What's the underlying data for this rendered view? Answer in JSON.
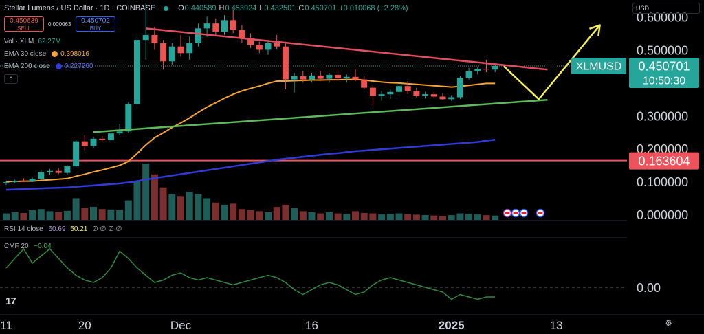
{
  "header": {
    "title": "Stellar Lumens / US Dollar · 1D · COINBASE",
    "open_label": "O",
    "open": "0.440589",
    "high_label": "H",
    "high": "0.453924",
    "low_label": "L",
    "low": "0.432501",
    "close_label": "C",
    "close": "0.450701",
    "change": "+0.010068 (+2.28%)"
  },
  "trade": {
    "sell_price": "0.450639",
    "sell_label": "SELL",
    "spread": "0.000063",
    "buy_price": "0.450702",
    "buy_label": "BUY"
  },
  "indicators": {
    "vol_name": "Vol · XLM",
    "vol_value": "62.27M",
    "ema30_name": "EMA 30 close",
    "ema30_value": "0.398016",
    "ema200_name": "EMA 200 close",
    "ema200_value": "0.227260",
    "rsi_name": "RSI 14 close",
    "rsi_value1": "60.69",
    "rsi_value2": "50.21",
    "rsi_extra": "∅ ∅ ∅ ∅",
    "cmf_name": "CMF 20",
    "cmf_value": "−0.04",
    "collapse_glyph": "⌃"
  },
  "currency_select": "USD",
  "symbol_badge": "XLMUSD",
  "last_price_label": "0.450701",
  "countdown": "10:50:30",
  "level_label": "0.163604",
  "logo_text": "17",
  "colors": {
    "up": "#26a69a",
    "down": "#ef5350",
    "ema30": "#f7a434",
    "ema200": "#2f3bd6",
    "resistance": "#e04f5f",
    "support": "#5db95b",
    "level": "#f0525c",
    "projection": "#f2ee5c",
    "cmf": "#2e8b3e"
  },
  "chart_data": {
    "type": "candlestick",
    "yaxis_ticks": [
      "0.000000",
      "0.100000",
      "0.200000",
      "0.300000",
      "0.400000",
      "0.500000",
      "0.600000"
    ],
    "ylim": [
      0,
      0.62
    ],
    "xaxis_ticks": [
      {
        "label": "11",
        "i": 0
      },
      {
        "label": "20",
        "i": 9
      },
      {
        "label": "Dec",
        "i": 20
      },
      {
        "label": "16",
        "i": 35
      },
      {
        "label": "2025",
        "i": 51
      },
      {
        "label": "13",
        "i": 63
      }
    ],
    "candles": [
      {
        "o": 0.095,
        "h": 0.1,
        "l": 0.09,
        "c": 0.098
      },
      {
        "o": 0.098,
        "h": 0.105,
        "l": 0.095,
        "c": 0.102
      },
      {
        "o": 0.102,
        "h": 0.11,
        "l": 0.098,
        "c": 0.1
      },
      {
        "o": 0.1,
        "h": 0.112,
        "l": 0.098,
        "c": 0.108
      },
      {
        "o": 0.108,
        "h": 0.135,
        "l": 0.105,
        "c": 0.128
      },
      {
        "o": 0.128,
        "h": 0.138,
        "l": 0.12,
        "c": 0.132
      },
      {
        "o": 0.132,
        "h": 0.14,
        "l": 0.122,
        "c": 0.126
      },
      {
        "o": 0.126,
        "h": 0.15,
        "l": 0.12,
        "c": 0.146
      },
      {
        "o": 0.146,
        "h": 0.228,
        "l": 0.14,
        "c": 0.222
      },
      {
        "o": 0.222,
        "h": 0.24,
        "l": 0.195,
        "c": 0.208
      },
      {
        "o": 0.208,
        "h": 0.235,
        "l": 0.2,
        "c": 0.23
      },
      {
        "o": 0.23,
        "h": 0.238,
        "l": 0.222,
        "c": 0.226
      },
      {
        "o": 0.226,
        "h": 0.25,
        "l": 0.22,
        "c": 0.246
      },
      {
        "o": 0.246,
        "h": 0.275,
        "l": 0.24,
        "c": 0.252
      },
      {
        "o": 0.252,
        "h": 0.34,
        "l": 0.248,
        "c": 0.335
      },
      {
        "o": 0.335,
        "h": 0.54,
        "l": 0.33,
        "c": 0.53
      },
      {
        "o": 0.53,
        "h": 0.64,
        "l": 0.47,
        "c": 0.545
      },
      {
        "o": 0.545,
        "h": 0.57,
        "l": 0.5,
        "c": 0.52
      },
      {
        "o": 0.52,
        "h": 0.53,
        "l": 0.44,
        "c": 0.465
      },
      {
        "o": 0.465,
        "h": 0.52,
        "l": 0.455,
        "c": 0.51
      },
      {
        "o": 0.51,
        "h": 0.545,
        "l": 0.48,
        "c": 0.49
      },
      {
        "o": 0.49,
        "h": 0.54,
        "l": 0.47,
        "c": 0.52
      },
      {
        "o": 0.52,
        "h": 0.58,
        "l": 0.51,
        "c": 0.565
      },
      {
        "o": 0.565,
        "h": 0.6,
        "l": 0.54,
        "c": 0.58
      },
      {
        "o": 0.58,
        "h": 0.595,
        "l": 0.54,
        "c": 0.555
      },
      {
        "o": 0.555,
        "h": 0.605,
        "l": 0.545,
        "c": 0.59
      },
      {
        "o": 0.59,
        "h": 0.62,
        "l": 0.55,
        "c": 0.56
      },
      {
        "o": 0.56,
        "h": 0.575,
        "l": 0.52,
        "c": 0.535
      },
      {
        "o": 0.535,
        "h": 0.55,
        "l": 0.505,
        "c": 0.515
      },
      {
        "o": 0.515,
        "h": 0.525,
        "l": 0.49,
        "c": 0.5
      },
      {
        "o": 0.5,
        "h": 0.53,
        "l": 0.485,
        "c": 0.52
      },
      {
        "o": 0.52,
        "h": 0.545,
        "l": 0.5,
        "c": 0.51
      },
      {
        "o": 0.51,
        "h": 0.525,
        "l": 0.38,
        "c": 0.41
      },
      {
        "o": 0.41,
        "h": 0.43,
        "l": 0.37,
        "c": 0.42
      },
      {
        "o": 0.42,
        "h": 0.435,
        "l": 0.4,
        "c": 0.41
      },
      {
        "o": 0.41,
        "h": 0.43,
        "l": 0.4,
        "c": 0.422
      },
      {
        "o": 0.422,
        "h": 0.435,
        "l": 0.405,
        "c": 0.412
      },
      {
        "o": 0.412,
        "h": 0.43,
        "l": 0.4,
        "c": 0.424
      },
      {
        "o": 0.424,
        "h": 0.438,
        "l": 0.408,
        "c": 0.414
      },
      {
        "o": 0.414,
        "h": 0.425,
        "l": 0.4,
        "c": 0.418
      },
      {
        "o": 0.418,
        "h": 0.44,
        "l": 0.405,
        "c": 0.41
      },
      {
        "o": 0.41,
        "h": 0.42,
        "l": 0.38,
        "c": 0.385
      },
      {
        "o": 0.385,
        "h": 0.395,
        "l": 0.33,
        "c": 0.36
      },
      {
        "o": 0.36,
        "h": 0.375,
        "l": 0.345,
        "c": 0.365
      },
      {
        "o": 0.365,
        "h": 0.38,
        "l": 0.35,
        "c": 0.372
      },
      {
        "o": 0.372,
        "h": 0.4,
        "l": 0.36,
        "c": 0.39
      },
      {
        "o": 0.39,
        "h": 0.405,
        "l": 0.365,
        "c": 0.375
      },
      {
        "o": 0.375,
        "h": 0.385,
        "l": 0.355,
        "c": 0.36
      },
      {
        "o": 0.36,
        "h": 0.372,
        "l": 0.352,
        "c": 0.365
      },
      {
        "o": 0.365,
        "h": 0.372,
        "l": 0.355,
        "c": 0.358
      },
      {
        "o": 0.358,
        "h": 0.368,
        "l": 0.348,
        "c": 0.35
      },
      {
        "o": 0.35,
        "h": 0.362,
        "l": 0.345,
        "c": 0.356
      },
      {
        "o": 0.356,
        "h": 0.42,
        "l": 0.35,
        "c": 0.415
      },
      {
        "o": 0.415,
        "h": 0.445,
        "l": 0.41,
        "c": 0.435
      },
      {
        "o": 0.435,
        "h": 0.448,
        "l": 0.425,
        "c": 0.442
      },
      {
        "o": 0.442,
        "h": 0.47,
        "l": 0.432,
        "c": 0.44
      },
      {
        "o": 0.44,
        "h": 0.454,
        "l": 0.432,
        "c": 0.451
      }
    ],
    "volumes": [
      0.3,
      0.35,
      0.32,
      0.45,
      0.5,
      0.4,
      0.35,
      0.42,
      1.0,
      0.55,
      0.6,
      0.5,
      0.48,
      0.45,
      0.9,
      1.8,
      2.6,
      2.1,
      1.5,
      1.2,
      1.1,
      1.3,
      1.2,
      1.0,
      0.8,
      0.7,
      0.75,
      0.5,
      0.45,
      0.4,
      0.35,
      0.6,
      0.7,
      0.55,
      0.4,
      0.35,
      0.3,
      0.35,
      0.3,
      0.28,
      0.4,
      0.32,
      0.3,
      0.25,
      0.28,
      0.3,
      0.26,
      0.24,
      0.22,
      0.2,
      0.18,
      0.22,
      0.3,
      0.28,
      0.25,
      0.22,
      0.2
    ],
    "ema30": [
      0.1,
      0.1,
      0.101,
      0.101,
      0.103,
      0.105,
      0.107,
      0.109,
      0.116,
      0.122,
      0.129,
      0.135,
      0.142,
      0.149,
      0.161,
      0.185,
      0.211,
      0.233,
      0.248,
      0.264,
      0.278,
      0.293,
      0.31,
      0.326,
      0.339,
      0.353,
      0.365,
      0.375,
      0.383,
      0.39,
      0.398,
      0.405,
      0.405,
      0.406,
      0.407,
      0.408,
      0.408,
      0.409,
      0.409,
      0.41,
      0.41,
      0.408,
      0.405,
      0.402,
      0.4,
      0.399,
      0.397,
      0.395,
      0.393,
      0.391,
      0.389,
      0.387,
      0.389,
      0.392,
      0.395,
      0.398,
      0.398
    ],
    "ema200": [
      0.075,
      0.076,
      0.077,
      0.078,
      0.079,
      0.08,
      0.081,
      0.082,
      0.084,
      0.086,
      0.088,
      0.09,
      0.092,
      0.094,
      0.097,
      0.101,
      0.106,
      0.11,
      0.114,
      0.118,
      0.122,
      0.126,
      0.13,
      0.134,
      0.138,
      0.142,
      0.146,
      0.15,
      0.154,
      0.158,
      0.162,
      0.166,
      0.169,
      0.172,
      0.175,
      0.178,
      0.181,
      0.184,
      0.186,
      0.189,
      0.192,
      0.194,
      0.196,
      0.198,
      0.2,
      0.202,
      0.204,
      0.206,
      0.208,
      0.21,
      0.212,
      0.214,
      0.216,
      0.218,
      0.22,
      0.224,
      0.227
    ],
    "resistance_line": {
      "from": {
        "i": 16,
        "y": 0.565
      },
      "to": {
        "i": 62,
        "y": 0.44
      }
    },
    "support_line": {
      "from": {
        "i": 10,
        "y": 0.25
      },
      "to": {
        "i": 62,
        "y": 0.348
      }
    },
    "horizontal_level": 0.163604,
    "projection_path": [
      {
        "i": 57,
        "y": 0.45
      },
      {
        "i": 61,
        "y": 0.35
      },
      {
        "i": 68,
        "y": 0.575
      }
    ],
    "cmf": [
      0.08,
      0.12,
      0.16,
      0.1,
      0.13,
      0.16,
      0.12,
      0.08,
      0.05,
      0.03,
      0.02,
      0.04,
      0.08,
      0.15,
      0.12,
      0.08,
      0.05,
      0.02,
      0.03,
      0.05,
      0.06,
      0.04,
      0.03,
      0.04,
      0.03,
      0.02,
      0.01,
      0.02,
      0.03,
      0.04,
      0.05,
      0.04,
      0.02,
      -0.01,
      -0.03,
      -0.01,
      0.01,
      0.02,
      0.01,
      -0.01,
      -0.03,
      -0.02,
      0.01,
      0.03,
      0.04,
      0.03,
      0.02,
      0.01,
      0.0,
      -0.01,
      -0.02,
      -0.05,
      -0.03,
      -0.04,
      -0.05,
      -0.04,
      -0.04
    ],
    "cmf_ticks": [
      "0.00"
    ]
  }
}
